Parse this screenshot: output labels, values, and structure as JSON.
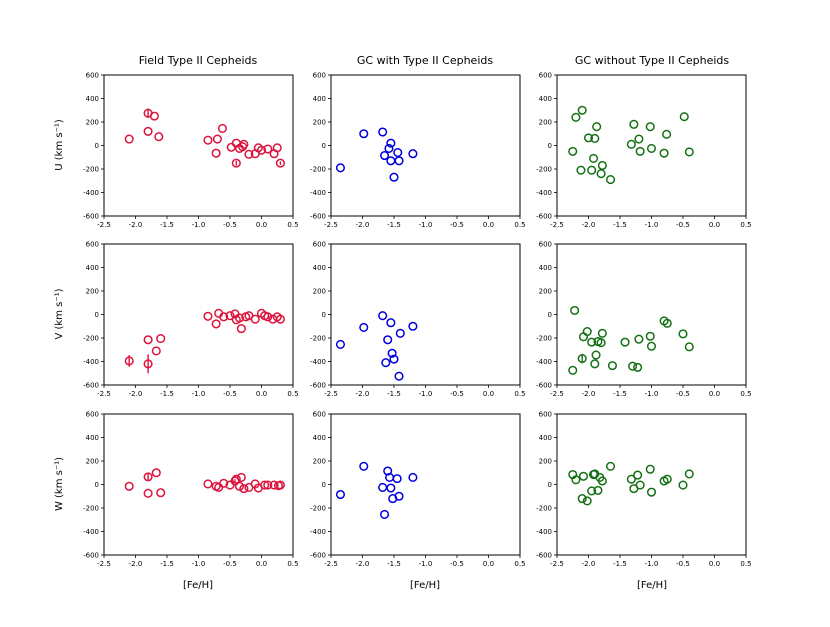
{
  "figure": {
    "xlabel": "[Fe/H]",
    "xlim": [
      -2.5,
      0.5
    ],
    "xticks": [
      "-2.5",
      "-2.0",
      "-1.5",
      "-1.0",
      "-0.5",
      "0.0",
      "0.5"
    ],
    "ylim": [
      -600,
      600
    ],
    "yticks": [
      "-600",
      "-400",
      "-200",
      "0",
      "200",
      "400",
      "600"
    ],
    "row_labels": [
      "U (km s⁻¹)",
      "V (km s⁻¹)",
      "W (km s⁻¹)"
    ],
    "column_titles": [
      "Field Type II Cepheids",
      "GC with Type II Cepheids",
      "GC without Type II Cepheids"
    ],
    "column_colors": [
      "#dc143c",
      "#0000dd",
      "#157015"
    ]
  },
  "chart_data": [
    {
      "type": "scatter",
      "row": "U",
      "column": "Field Type II Cepheids",
      "points": [
        {
          "x": -2.1,
          "y": 55
        },
        {
          "x": -1.8,
          "y": 275,
          "err": 40
        },
        {
          "x": -1.8,
          "y": 120
        },
        {
          "x": -1.7,
          "y": 250
        },
        {
          "x": -1.63,
          "y": 75
        },
        {
          "x": -0.85,
          "y": 45
        },
        {
          "x": -0.72,
          "y": -65
        },
        {
          "x": -0.7,
          "y": 55
        },
        {
          "x": -0.62,
          "y": 145
        },
        {
          "x": -0.48,
          "y": -15
        },
        {
          "x": -0.4,
          "y": 20
        },
        {
          "x": -0.4,
          "y": -150,
          "err": 20
        },
        {
          "x": -0.35,
          "y": -25
        },
        {
          "x": -0.3,
          "y": -10
        },
        {
          "x": -0.28,
          "y": 10
        },
        {
          "x": -0.2,
          "y": -75
        },
        {
          "x": -0.1,
          "y": -70
        },
        {
          "x": -0.05,
          "y": -20
        },
        {
          "x": 0.0,
          "y": -40
        },
        {
          "x": 0.1,
          "y": -30
        },
        {
          "x": 0.2,
          "y": -70
        },
        {
          "x": 0.25,
          "y": -20
        },
        {
          "x": 0.3,
          "y": -150,
          "err": 15
        }
      ]
    },
    {
      "type": "scatter",
      "row": "U",
      "column": "GC with Type II Cepheids",
      "points": [
        {
          "x": -2.35,
          "y": -190
        },
        {
          "x": -1.98,
          "y": 100
        },
        {
          "x": -1.68,
          "y": 115
        },
        {
          "x": -1.65,
          "y": -85
        },
        {
          "x": -1.58,
          "y": -25
        },
        {
          "x": -1.55,
          "y": 20
        },
        {
          "x": -1.55,
          "y": -130
        },
        {
          "x": -1.5,
          "y": -270
        },
        {
          "x": -1.44,
          "y": -60
        },
        {
          "x": -1.42,
          "y": -130
        },
        {
          "x": -1.2,
          "y": -70
        }
      ]
    },
    {
      "type": "scatter",
      "row": "U",
      "column": "GC without Type II Cepheids",
      "points": [
        {
          "x": -2.25,
          "y": -50
        },
        {
          "x": -2.2,
          "y": 240
        },
        {
          "x": -2.1,
          "y": 300
        },
        {
          "x": -2.12,
          "y": -210
        },
        {
          "x": -2.0,
          "y": 65
        },
        {
          "x": -1.95,
          "y": -210
        },
        {
          "x": -1.92,
          "y": -110
        },
        {
          "x": -1.9,
          "y": 60
        },
        {
          "x": -1.87,
          "y": 160
        },
        {
          "x": -1.8,
          "y": -240
        },
        {
          "x": -1.78,
          "y": -170
        },
        {
          "x": -1.65,
          "y": -290
        },
        {
          "x": -1.32,
          "y": 10
        },
        {
          "x": -1.28,
          "y": 180
        },
        {
          "x": -1.2,
          "y": 55
        },
        {
          "x": -1.18,
          "y": -50
        },
        {
          "x": -1.02,
          "y": 160
        },
        {
          "x": -1.0,
          "y": -25
        },
        {
          "x": -0.8,
          "y": -65
        },
        {
          "x": -0.76,
          "y": 95
        },
        {
          "x": -0.48,
          "y": 245
        },
        {
          "x": -0.4,
          "y": -55
        }
      ]
    },
    {
      "type": "scatter",
      "row": "V",
      "column": "Field Type II Cepheids",
      "points": [
        {
          "x": -2.1,
          "y": -395,
          "err": 50
        },
        {
          "x": -1.8,
          "y": -215
        },
        {
          "x": -1.8,
          "y": -420,
          "err": 80
        },
        {
          "x": -1.67,
          "y": -310
        },
        {
          "x": -1.6,
          "y": -205
        },
        {
          "x": -0.85,
          "y": -15
        },
        {
          "x": -0.72,
          "y": -80
        },
        {
          "x": -0.68,
          "y": 10
        },
        {
          "x": -0.6,
          "y": -20
        },
        {
          "x": -0.5,
          "y": -10
        },
        {
          "x": -0.42,
          "y": 5
        },
        {
          "x": -0.4,
          "y": -45
        },
        {
          "x": -0.35,
          "y": -30
        },
        {
          "x": -0.32,
          "y": -120
        },
        {
          "x": -0.25,
          "y": -20
        },
        {
          "x": -0.2,
          "y": -10
        },
        {
          "x": -0.1,
          "y": -40
        },
        {
          "x": 0.0,
          "y": 10
        },
        {
          "x": 0.05,
          "y": -10
        },
        {
          "x": 0.1,
          "y": -20
        },
        {
          "x": 0.18,
          "y": -40
        },
        {
          "x": 0.25,
          "y": -20
        },
        {
          "x": 0.3,
          "y": -40
        }
      ]
    },
    {
      "type": "scatter",
      "row": "V",
      "column": "GC with Type II Cepheids",
      "points": [
        {
          "x": -2.35,
          "y": -255
        },
        {
          "x": -1.98,
          "y": -110
        },
        {
          "x": -1.68,
          "y": -10
        },
        {
          "x": -1.63,
          "y": -410
        },
        {
          "x": -1.6,
          "y": -215
        },
        {
          "x": -1.55,
          "y": -70
        },
        {
          "x": -1.53,
          "y": -330
        },
        {
          "x": -1.5,
          "y": -380
        },
        {
          "x": -1.42,
          "y": -525
        },
        {
          "x": -1.4,
          "y": -160
        },
        {
          "x": -1.2,
          "y": -100
        }
      ]
    },
    {
      "type": "scatter",
      "row": "V",
      "column": "GC without Type II Cepheids",
      "points": [
        {
          "x": -2.25,
          "y": -475
        },
        {
          "x": -2.22,
          "y": 35
        },
        {
          "x": -2.1,
          "y": -375,
          "err": 40
        },
        {
          "x": -2.08,
          "y": -190
        },
        {
          "x": -2.02,
          "y": -145
        },
        {
          "x": -1.95,
          "y": -235
        },
        {
          "x": -1.9,
          "y": -420
        },
        {
          "x": -1.88,
          "y": -345
        },
        {
          "x": -1.85,
          "y": -230
        },
        {
          "x": -1.8,
          "y": -240
        },
        {
          "x": -1.78,
          "y": -160
        },
        {
          "x": -1.62,
          "y": -435
        },
        {
          "x": -1.42,
          "y": -235
        },
        {
          "x": -1.3,
          "y": -440
        },
        {
          "x": -1.22,
          "y": -450
        },
        {
          "x": -1.2,
          "y": -210
        },
        {
          "x": -1.02,
          "y": -185
        },
        {
          "x": -1.0,
          "y": -270
        },
        {
          "x": -0.8,
          "y": -55
        },
        {
          "x": -0.75,
          "y": -75
        },
        {
          "x": -0.5,
          "y": -165
        },
        {
          "x": -0.4,
          "y": -275
        }
      ]
    },
    {
      "type": "scatter",
      "row": "W",
      "column": "Field Type II Cepheids",
      "points": [
        {
          "x": -2.1,
          "y": -15
        },
        {
          "x": -1.8,
          "y": 65,
          "err": 30
        },
        {
          "x": -1.8,
          "y": -75
        },
        {
          "x": -1.67,
          "y": 100
        },
        {
          "x": -1.6,
          "y": -70
        },
        {
          "x": -0.85,
          "y": 5
        },
        {
          "x": -0.72,
          "y": -15
        },
        {
          "x": -0.68,
          "y": -25
        },
        {
          "x": -0.6,
          "y": 10
        },
        {
          "x": -0.5,
          "y": -5
        },
        {
          "x": -0.42,
          "y": 30,
          "err": 15
        },
        {
          "x": -0.4,
          "y": 45
        },
        {
          "x": -0.35,
          "y": -15
        },
        {
          "x": -0.32,
          "y": 60
        },
        {
          "x": -0.28,
          "y": -35
        },
        {
          "x": -0.2,
          "y": -25
        },
        {
          "x": -0.1,
          "y": 5
        },
        {
          "x": -0.05,
          "y": -30
        },
        {
          "x": 0.05,
          "y": -5
        },
        {
          "x": 0.1,
          "y": -5
        },
        {
          "x": 0.2,
          "y": -5
        },
        {
          "x": 0.27,
          "y": -10
        },
        {
          "x": 0.3,
          "y": -5
        }
      ]
    },
    {
      "type": "scatter",
      "row": "W",
      "column": "GC with Type II Cepheids",
      "points": [
        {
          "x": -2.35,
          "y": -85
        },
        {
          "x": -1.98,
          "y": 155
        },
        {
          "x": -1.68,
          "y": -25
        },
        {
          "x": -1.65,
          "y": -255
        },
        {
          "x": -1.6,
          "y": 115
        },
        {
          "x": -1.57,
          "y": 60
        },
        {
          "x": -1.55,
          "y": -30
        },
        {
          "x": -1.52,
          "y": -120
        },
        {
          "x": -1.45,
          "y": 50
        },
        {
          "x": -1.42,
          "y": -100
        },
        {
          "x": -1.2,
          "y": 60
        }
      ]
    },
    {
      "type": "scatter",
      "row": "W",
      "column": "GC without Type II Cepheids",
      "points": [
        {
          "x": -2.25,
          "y": 85
        },
        {
          "x": -2.2,
          "y": 40
        },
        {
          "x": -2.1,
          "y": -120
        },
        {
          "x": -2.08,
          "y": 70
        },
        {
          "x": -2.02,
          "y": -140
        },
        {
          "x": -1.95,
          "y": -55
        },
        {
          "x": -1.92,
          "y": 85
        },
        {
          "x": -1.9,
          "y": 90
        },
        {
          "x": -1.85,
          "y": -50
        },
        {
          "x": -1.82,
          "y": 60
        },
        {
          "x": -1.78,
          "y": 30
        },
        {
          "x": -1.65,
          "y": 155
        },
        {
          "x": -1.32,
          "y": 45
        },
        {
          "x": -1.28,
          "y": -35
        },
        {
          "x": -1.22,
          "y": 80
        },
        {
          "x": -1.18,
          "y": -5
        },
        {
          "x": -1.02,
          "y": 130
        },
        {
          "x": -1.0,
          "y": -65
        },
        {
          "x": -0.8,
          "y": 30
        },
        {
          "x": -0.75,
          "y": 45
        },
        {
          "x": -0.5,
          "y": -5
        },
        {
          "x": -0.4,
          "y": 90
        }
      ]
    }
  ]
}
